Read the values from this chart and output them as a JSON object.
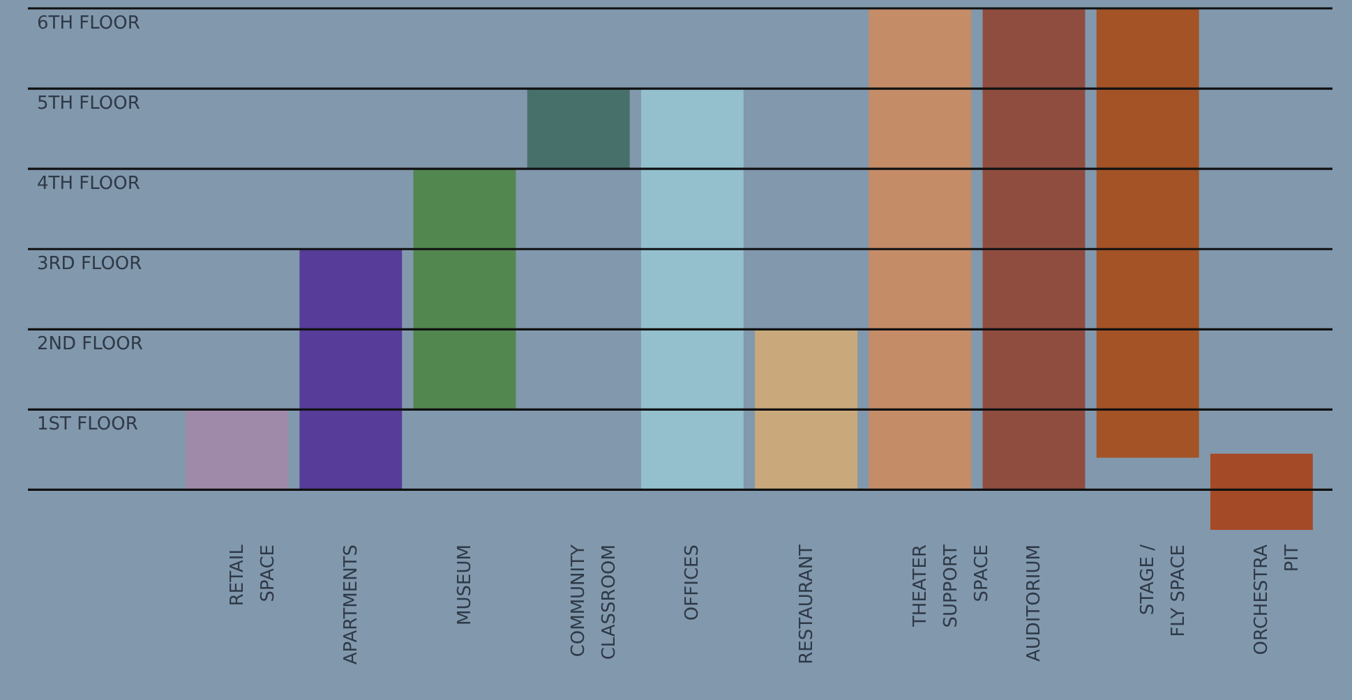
{
  "chart_data": {
    "type": "bar",
    "categories": [
      "RETAIL SPACE",
      "APARTMENTS",
      "MUSEUM",
      "COMMUNITY CLASSROOM",
      "OFFICES",
      "RESTAURANT",
      "THEATER SUPPORT SPACE",
      "AUDITORIUM",
      "STAGE / FLY SPACE",
      "ORCHESTRA PIT"
    ],
    "base": [
      0,
      0,
      1,
      4,
      0,
      0,
      0,
      0,
      0.4,
      -0.5
    ],
    "values": [
      1,
      3,
      3,
      1,
      5,
      2,
      6,
      6,
      5.6,
      0.95
    ],
    "colors": [
      "#a08aa9",
      "#573c9a",
      "#52874f",
      "#47706a",
      "#93c0cc",
      "#c9a97b",
      "#c58c68",
      "#8f4d40",
      "#a35326",
      "#a54a26"
    ],
    "ylim": [
      -0.5,
      6
    ],
    "yticks": [
      {
        "value": 0,
        "label": null
      },
      {
        "value": 1,
        "label": "1ST FLOOR"
      },
      {
        "value": 2,
        "label": "2ND FLOOR"
      },
      {
        "value": 3,
        "label": "3RD FLOOR"
      },
      {
        "value": 4,
        "label": "4TH FLOOR"
      },
      {
        "value": 5,
        "label": "5TH FLOOR"
      },
      {
        "value": 6,
        "label": "6TH FLOOR"
      }
    ],
    "grid": "y"
  }
}
